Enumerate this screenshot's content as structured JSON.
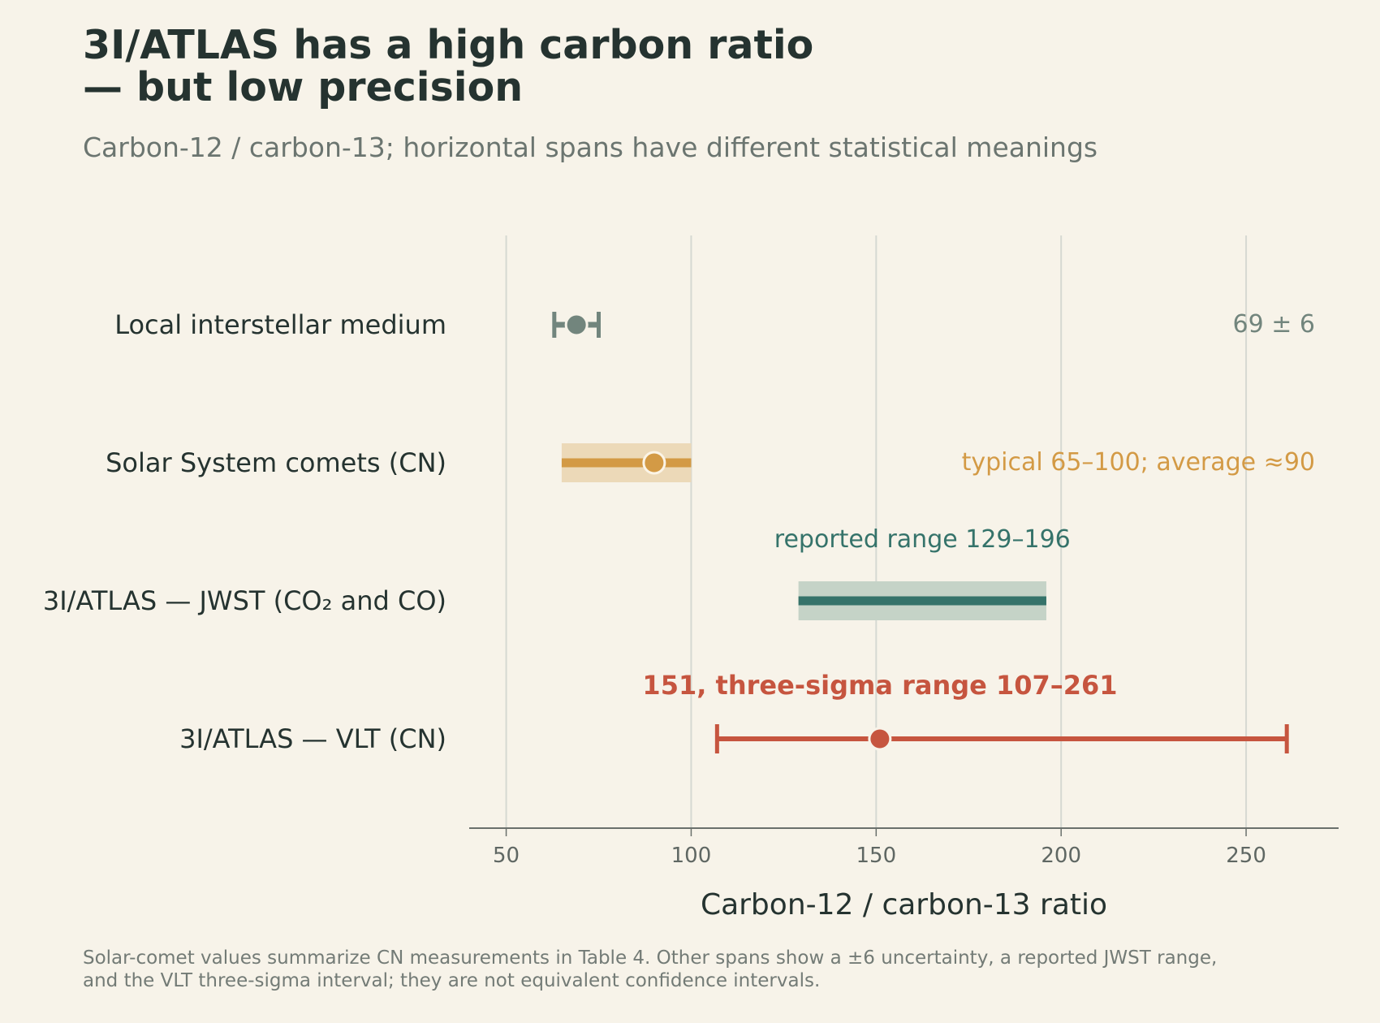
{
  "header": {
    "title_line1": "3I/ATLAS has a high carbon ratio",
    "title_line2": "— but low precision",
    "subtitle": "Carbon-12 / carbon-13; horizontal spans have different statistical meanings"
  },
  "footnote": {
    "line1": "Solar-comet values summarize CN measurements in Table 4. Other spans show a ±6 uncertainty, a reported JWST range,",
    "line2": "and the VLT three-sigma interval; they are not equivalent confidence intervals."
  },
  "colors": {
    "background": "#f7f3e9",
    "text": "#253330",
    "grid": "#d6d9d2",
    "axis": "#6a706c",
    "ism": "#72857d",
    "comets": "#d39a45",
    "comets_band": "#ecd9b8",
    "jwst": "#35736a",
    "jwst_band": "#c5d3c7",
    "vlt": "#c6553f"
  },
  "chart_data": {
    "type": "interval",
    "xlabel": "Carbon-12 / carbon-13 ratio",
    "xlim": [
      40,
      275
    ],
    "xticks": [
      50,
      100,
      150,
      200,
      250
    ],
    "grid": "vertical",
    "rows": [
      {
        "label": "Local interstellar medium",
        "kind": "errorbar",
        "center": 69,
        "low": 63,
        "high": 75,
        "annotation": "69 ± 6",
        "color_key": "ism"
      },
      {
        "label": "Solar System comets (CN)",
        "kind": "band-with-point",
        "center": 90,
        "low": 65,
        "high": 100,
        "annotation": "typical 65–100; average ≈90",
        "color_key": "comets"
      },
      {
        "label": "3I/ATLAS — JWST (CO₂ and CO)",
        "kind": "band",
        "low": 129,
        "high": 196,
        "annotation": "reported range 129–196",
        "color_key": "jwst"
      },
      {
        "label": "3I/ATLAS — VLT (CN)",
        "kind": "errorbar",
        "center": 151,
        "low": 107,
        "high": 261,
        "annotation": "151, three-sigma range 107–261",
        "color_key": "vlt"
      }
    ]
  }
}
